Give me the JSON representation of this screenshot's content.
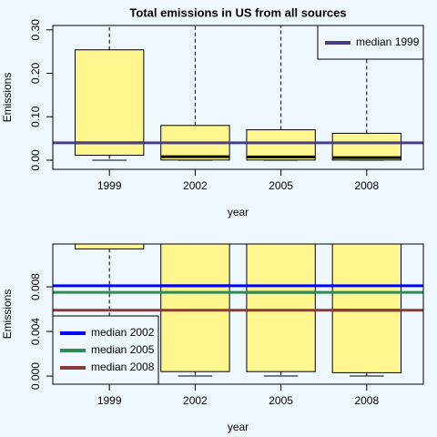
{
  "chart_data": [
    {
      "type": "box",
      "title": "Total emissions in US from all sources",
      "xlabel": "year",
      "ylabel": "Emissions",
      "categories": [
        "1999",
        "2002",
        "2005",
        "2008"
      ],
      "whisker_low": [
        0,
        0,
        0,
        0
      ],
      "q1": [
        0.0114,
        0.0004,
        0.0004,
        0.0003
      ],
      "median": [
        0.04,
        0.0081,
        0.0075,
        0.0059
      ],
      "q3": [
        0.254,
        0.08,
        0.07,
        0.062
      ],
      "whisker_high": [
        0.35,
        0.35,
        0.35,
        0.35
      ],
      "box_color": "#fff68f",
      "ylim": [
        -0.021,
        0.31
      ],
      "yticks": [
        {
          "value": 0,
          "label": "0.00"
        },
        {
          "value": 0.1,
          "label": "0.10"
        },
        {
          "value": 0.2,
          "label": "0.20"
        },
        {
          "value": 0.3,
          "label": "0.30"
        }
      ],
      "hlines": [
        {
          "name": "median 1999",
          "color": "#483d8b",
          "value": 0.04
        }
      ],
      "legend": "top right"
    },
    {
      "type": "box",
      "xlabel": "year",
      "ylabel": "Emissions",
      "categories": [
        "1999",
        "2002",
        "2005",
        "2008"
      ],
      "whisker_low": [
        0,
        0,
        0,
        0
      ],
      "q1": [
        0.0114,
        0.0004,
        0.0004,
        0.0003
      ],
      "median": [
        0.04,
        0.0081,
        0.0075,
        0.0059
      ],
      "q3": [
        0.254,
        0.08,
        0.07,
        0.062
      ],
      "whisker_high": [
        0.35,
        0.35,
        0.35,
        0.35
      ],
      "box_color": "#fff68f",
      "ylim": [
        -0.00073,
        0.01184
      ],
      "yticks": [
        {
          "value": 0,
          "label": "0.000"
        },
        {
          "value": 0.004,
          "label": "0.004"
        },
        {
          "value": 0.008,
          "label": "0.008"
        }
      ],
      "hlines": [
        {
          "name": "median 2002",
          "color": "#0000ff",
          "value": 0.0081
        },
        {
          "name": "median 2005",
          "color": "#2e8b57",
          "value": 0.0075
        },
        {
          "name": "median 2008",
          "color": "#8b3a3a",
          "value": 0.0059
        }
      ],
      "legend": "bottom left"
    }
  ]
}
